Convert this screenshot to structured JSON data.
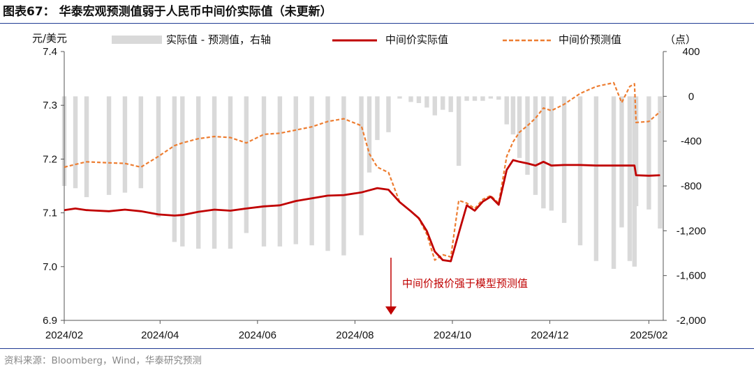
{
  "title": "图表67： 华泰宏观预测值弱于人民币中间价实际值（未更新）",
  "source": "资料来源：Bloomberg，Wind，华泰研究预测",
  "chart_data": {
    "type": "line",
    "left_unit": "元/美元",
    "right_unit": "（点）",
    "left_ylim": [
      6.9,
      7.4
    ],
    "left_ticks": [
      "7.4",
      "7.3",
      "7.2",
      "7.1",
      "7.0",
      "6.9"
    ],
    "right_ylim": [
      -2000,
      400
    ],
    "right_ticks": [
      "400",
      "0",
      "-400",
      "-800",
      "-1,200",
      "-1,600",
      "-2,000"
    ],
    "x_ticks": [
      "2024/02",
      "2024/04",
      "2024/06",
      "2024/08",
      "2024/10",
      "2024/12",
      "2025/02"
    ],
    "x_range": [
      "2024-02-01",
      "2025-02-10"
    ],
    "legend": [
      "实际值 - 预测值，右轴",
      "中间价实际值",
      "中间价预测值"
    ],
    "annotation": "中间价报价强于模型预测值",
    "colors": {
      "bar": "#d9d9d9",
      "actual": "#c00000",
      "forecast": "#ed7d31",
      "arrow": "#c00000"
    },
    "series": [
      {
        "name": "中间价实际值",
        "x": [
          "2024-02-01",
          "2024-02-08",
          "2024-02-15",
          "2024-02-29",
          "2024-03-10",
          "2024-03-20",
          "2024-03-31",
          "2024-04-10",
          "2024-04-15",
          "2024-04-25",
          "2024-05-05",
          "2024-05-15",
          "2024-05-25",
          "2024-06-05",
          "2024-06-15",
          "2024-06-25",
          "2024-07-05",
          "2024-07-15",
          "2024-07-25",
          "2024-08-05",
          "2024-08-10",
          "2024-08-15",
          "2024-08-22",
          "2024-08-29",
          "2024-09-05",
          "2024-09-10",
          "2024-09-15",
          "2024-09-20",
          "2024-09-25",
          "2024-09-30",
          "2024-10-05",
          "2024-10-10",
          "2024-10-15",
          "2024-10-20",
          "2024-10-25",
          "2024-10-30",
          "2024-11-04",
          "2024-11-08",
          "2024-11-12",
          "2024-11-17",
          "2024-11-22",
          "2024-11-27",
          "2024-12-02",
          "2024-12-10",
          "2024-12-20",
          "2024-12-30",
          "2025-01-10",
          "2025-01-20",
          "2025-01-23",
          "2025-01-24",
          "2025-02-01",
          "2025-02-08"
        ],
        "values": [
          7.105,
          7.108,
          7.105,
          7.103,
          7.106,
          7.103,
          7.097,
          7.095,
          7.096,
          7.102,
          7.106,
          7.104,
          7.108,
          7.112,
          7.114,
          7.122,
          7.127,
          7.132,
          7.133,
          7.138,
          7.142,
          7.146,
          7.143,
          7.12,
          7.103,
          7.09,
          7.066,
          7.028,
          7.012,
          7.01,
          7.062,
          7.114,
          7.104,
          7.121,
          7.13,
          7.115,
          7.18,
          7.198,
          7.195,
          7.192,
          7.188,
          7.195,
          7.188,
          7.189,
          7.189,
          7.188,
          7.188,
          7.188,
          7.188,
          7.17,
          7.169,
          7.17
        ]
      },
      {
        "name": "中间价预测值",
        "x": [
          "2024-02-01",
          "2024-02-08",
          "2024-02-15",
          "2024-02-29",
          "2024-03-10",
          "2024-03-20",
          "2024-03-31",
          "2024-04-10",
          "2024-04-15",
          "2024-04-25",
          "2024-05-05",
          "2024-05-15",
          "2024-05-25",
          "2024-06-05",
          "2024-06-15",
          "2024-06-25",
          "2024-07-05",
          "2024-07-15",
          "2024-07-25",
          "2024-08-05",
          "2024-08-10",
          "2024-08-15",
          "2024-08-22",
          "2024-08-29",
          "2024-09-05",
          "2024-09-10",
          "2024-09-15",
          "2024-09-20",
          "2024-09-25",
          "2024-09-30",
          "2024-10-05",
          "2024-10-10",
          "2024-10-15",
          "2024-10-20",
          "2024-10-25",
          "2024-10-30",
          "2024-11-04",
          "2024-11-08",
          "2024-11-12",
          "2024-11-17",
          "2024-11-22",
          "2024-11-27",
          "2024-12-02",
          "2024-12-10",
          "2024-12-20",
          "2024-12-30",
          "2025-01-10",
          "2025-01-15",
          "2025-01-20",
          "2025-01-23",
          "2025-01-24",
          "2025-02-01",
          "2025-02-08"
        ],
        "values": [
          7.185,
          7.19,
          7.195,
          7.193,
          7.192,
          7.185,
          7.205,
          7.225,
          7.23,
          7.238,
          7.242,
          7.24,
          7.23,
          7.246,
          7.248,
          7.254,
          7.26,
          7.27,
          7.275,
          7.262,
          7.21,
          7.185,
          7.175,
          7.12,
          7.103,
          7.089,
          7.06,
          7.012,
          7.022,
          7.018,
          7.123,
          7.118,
          7.108,
          7.125,
          7.132,
          7.118,
          7.205,
          7.232,
          7.25,
          7.262,
          7.276,
          7.295,
          7.29,
          7.302,
          7.322,
          7.335,
          7.342,
          7.305,
          7.335,
          7.34,
          7.268,
          7.27,
          7.288
        ]
      }
    ],
    "bars": {
      "name": "实际值 - 预测值，右轴",
      "x": [
        "2024-02-01",
        "2024-02-08",
        "2024-02-15",
        "2024-02-29",
        "2024-03-10",
        "2024-03-20",
        "2024-03-31",
        "2024-04-10",
        "2024-04-15",
        "2024-04-25",
        "2024-05-05",
        "2024-05-15",
        "2024-05-25",
        "2024-06-05",
        "2024-06-15",
        "2024-06-25",
        "2024-07-05",
        "2024-07-15",
        "2024-07-25",
        "2024-08-05",
        "2024-08-10",
        "2024-08-15",
        "2024-08-22",
        "2024-08-29",
        "2024-09-05",
        "2024-09-10",
        "2024-09-15",
        "2024-09-20",
        "2024-09-25",
        "2024-09-30",
        "2024-10-05",
        "2024-10-10",
        "2024-10-15",
        "2024-10-20",
        "2024-10-25",
        "2024-10-30",
        "2024-11-04",
        "2024-11-08",
        "2024-11-12",
        "2024-11-17",
        "2024-11-22",
        "2024-11-27",
        "2024-12-02",
        "2024-12-10",
        "2024-12-20",
        "2024-12-30",
        "2025-01-10",
        "2025-01-15",
        "2025-01-20",
        "2025-01-23",
        "2025-01-24",
        "2025-02-01",
        "2025-02-08"
      ],
      "values": [
        -800,
        -820,
        -900,
        -880,
        -860,
        -820,
        -1080,
        -1300,
        -1340,
        -1360,
        -1360,
        -1360,
        -1220,
        -1340,
        -1340,
        -1320,
        -1330,
        -1380,
        -1420,
        -1240,
        -680,
        -390,
        -320,
        -20,
        -50,
        -60,
        -100,
        -170,
        -120,
        -140,
        -620,
        -40,
        -40,
        -40,
        -20,
        -30,
        -250,
        -340,
        -550,
        -700,
        -880,
        -1000,
        -1020,
        -1130,
        -1330,
        -1470,
        -1540,
        -1170,
        -1470,
        -1520,
        -980,
        -1010,
        -1180
      ]
    }
  }
}
